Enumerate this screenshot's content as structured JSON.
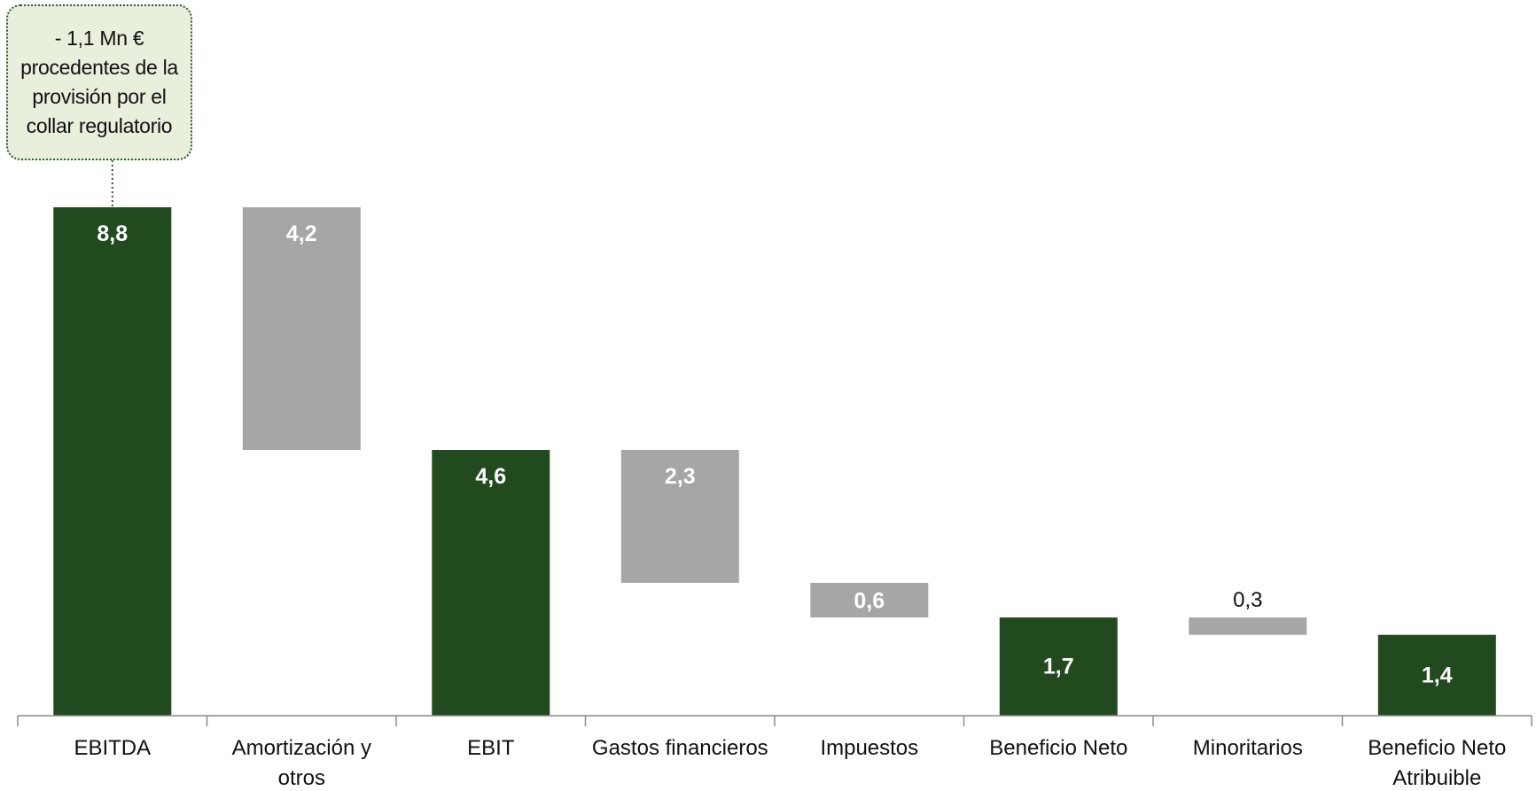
{
  "colors": {
    "total_bar": "#214b1e",
    "step_bar": "#a6a6a6",
    "axis": "#8c8c8c",
    "label_on_bar": "#ffffff",
    "label_outside": "#111111",
    "annotation_fill": "#e9efdd",
    "annotation_border": "#2f5a2a"
  },
  "annotation": {
    "text": "- 1,1 Mn €\nprocedentes de la\nprovisión por el\ncollar regulatorio",
    "target": "EBITDA"
  },
  "chart_data": {
    "type": "bar",
    "variant": "waterfall",
    "title": "",
    "xlabel": "",
    "ylabel": "",
    "grid": false,
    "legend": "none",
    "categories": [
      "EBITDA",
      "Amortización y otros",
      "EBIT",
      "Gastos financieros",
      "Impuestos",
      "Beneficio Neto",
      "Minoritarios",
      "Beneficio Neto Atribuible"
    ],
    "category_lines": [
      [
        "EBITDA"
      ],
      [
        "Amortización y",
        "otros"
      ],
      [
        "EBIT"
      ],
      [
        "Gastos financieros"
      ],
      [
        "Impuestos"
      ],
      [
        "Beneficio Neto"
      ],
      [
        "Minoritarios"
      ],
      [
        "Beneficio Neto",
        "Atribuible"
      ]
    ],
    "values": [
      8.8,
      4.2,
      4.6,
      2.3,
      0.6,
      1.7,
      0.3,
      1.4
    ],
    "kinds": [
      "total",
      "decrease",
      "total",
      "decrease",
      "decrease",
      "total",
      "decrease",
      "total"
    ],
    "data_labels": [
      "8,8",
      "4,2",
      "4,6",
      "2,3",
      "0,6",
      "1,7",
      "0,3",
      "1,4"
    ],
    "ylim": [
      0,
      8.8
    ]
  }
}
